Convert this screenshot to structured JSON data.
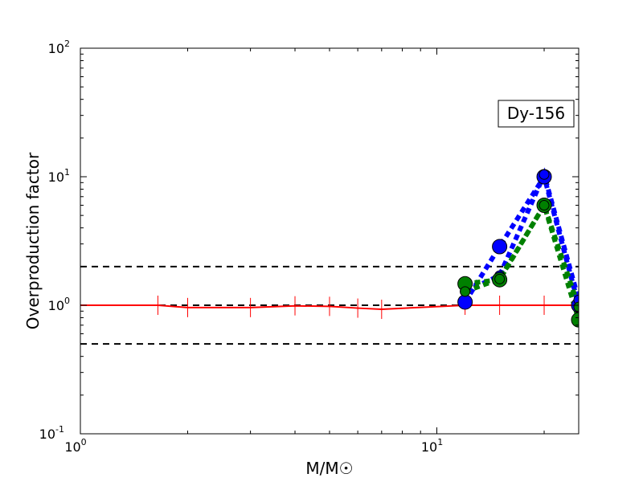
{
  "chart_data": {
    "type": "line",
    "title": "",
    "xlabel": "M/M☉",
    "ylabel": "Overproduction factor",
    "xscale": "log",
    "yscale": "log",
    "xlim": [
      1,
      25
    ],
    "ylim": [
      0.1,
      100
    ],
    "grid": false,
    "annotation": "Dy-156",
    "annotation_position": "top-right",
    "x_tick_labels": [
      {
        "base": "10",
        "exp": "0"
      },
      {
        "base": "10",
        "exp": "1"
      }
    ],
    "y_tick_labels": [
      {
        "base": "10",
        "exp": "-1"
      },
      {
        "base": "10",
        "exp": "0"
      },
      {
        "base": "10",
        "exp": "1"
      },
      {
        "base": "10",
        "exp": "2"
      }
    ],
    "reference_lines": [
      0.5,
      1.0,
      2.0
    ],
    "series": [
      {
        "color": "#ff0000",
        "style": "solid",
        "marker": "errorbar",
        "x": [
          1,
          1.65,
          2,
          3,
          4,
          5,
          6,
          7,
          12,
          15,
          20,
          25
        ],
        "y": [
          1.0,
          1.0,
          0.96,
          0.96,
          0.99,
          0.98,
          0.95,
          0.93,
          1.0,
          1.0,
          1.0,
          1.0
        ]
      },
      {
        "color": "#0000ff",
        "style": "dotted",
        "marker": "large-circle",
        "x": [
          12,
          15,
          20,
          25
        ],
        "y": [
          1.06,
          2.86,
          10.0,
          1.0
        ]
      },
      {
        "color": "#0000ff",
        "style": "dotted",
        "marker": "small-circle",
        "x": [
          12,
          15,
          20,
          25
        ],
        "y": [
          1.28,
          1.7,
          10.4,
          1.1
        ]
      },
      {
        "color": "#008000",
        "style": "dotted",
        "marker": "large-circle",
        "x": [
          12,
          15,
          20,
          25
        ],
        "y": [
          1.47,
          1.58,
          6.0,
          0.77
        ]
      },
      {
        "color": "#008000",
        "style": "dotted",
        "marker": "small-circle",
        "x": [
          12,
          15,
          20,
          25
        ],
        "y": [
          1.28,
          1.6,
          6.0,
          0.97
        ]
      }
    ]
  }
}
